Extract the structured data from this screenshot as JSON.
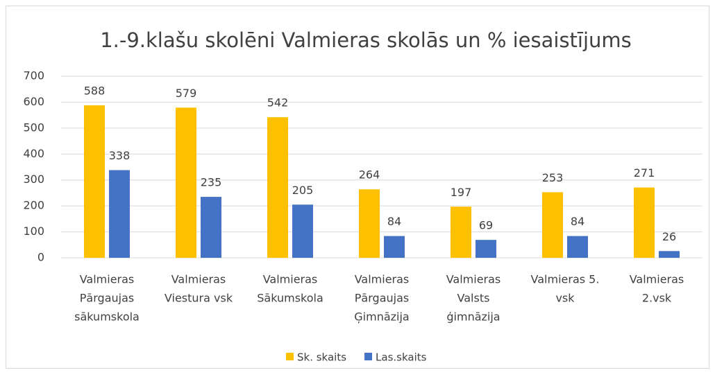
{
  "chart_data": {
    "type": "bar",
    "title": "1.-9.klašu skolēni Valmieras skolās un % iesaistījums",
    "categories": [
      [
        "Valmieras",
        "Pārgaujas",
        "sākumskola"
      ],
      [
        "Valmieras",
        "Viestura vsk"
      ],
      [
        "Valmieras",
        "Sākumskola"
      ],
      [
        "Valmieras",
        "Pārgaujas",
        "Ģimnāzija"
      ],
      [
        "Valmieras",
        "Valsts",
        "ģimnāzija"
      ],
      [
        "Valmieras 5.",
        "vsk"
      ],
      [
        "Valmieras",
        "2.vsk"
      ]
    ],
    "series": [
      {
        "name": "Sk. skaits",
        "color": "#FFC000",
        "values": [
          588,
          579,
          542,
          264,
          197,
          253,
          271
        ]
      },
      {
        "name": "Las.skaits",
        "color": "#4472C4",
        "values": [
          338,
          235,
          205,
          84,
          69,
          84,
          26
        ]
      }
    ],
    "ylim": [
      0,
      700
    ],
    "yticks": [
      0,
      100,
      200,
      300,
      400,
      500,
      600,
      700
    ],
    "grid": true,
    "legend": "bottom"
  }
}
